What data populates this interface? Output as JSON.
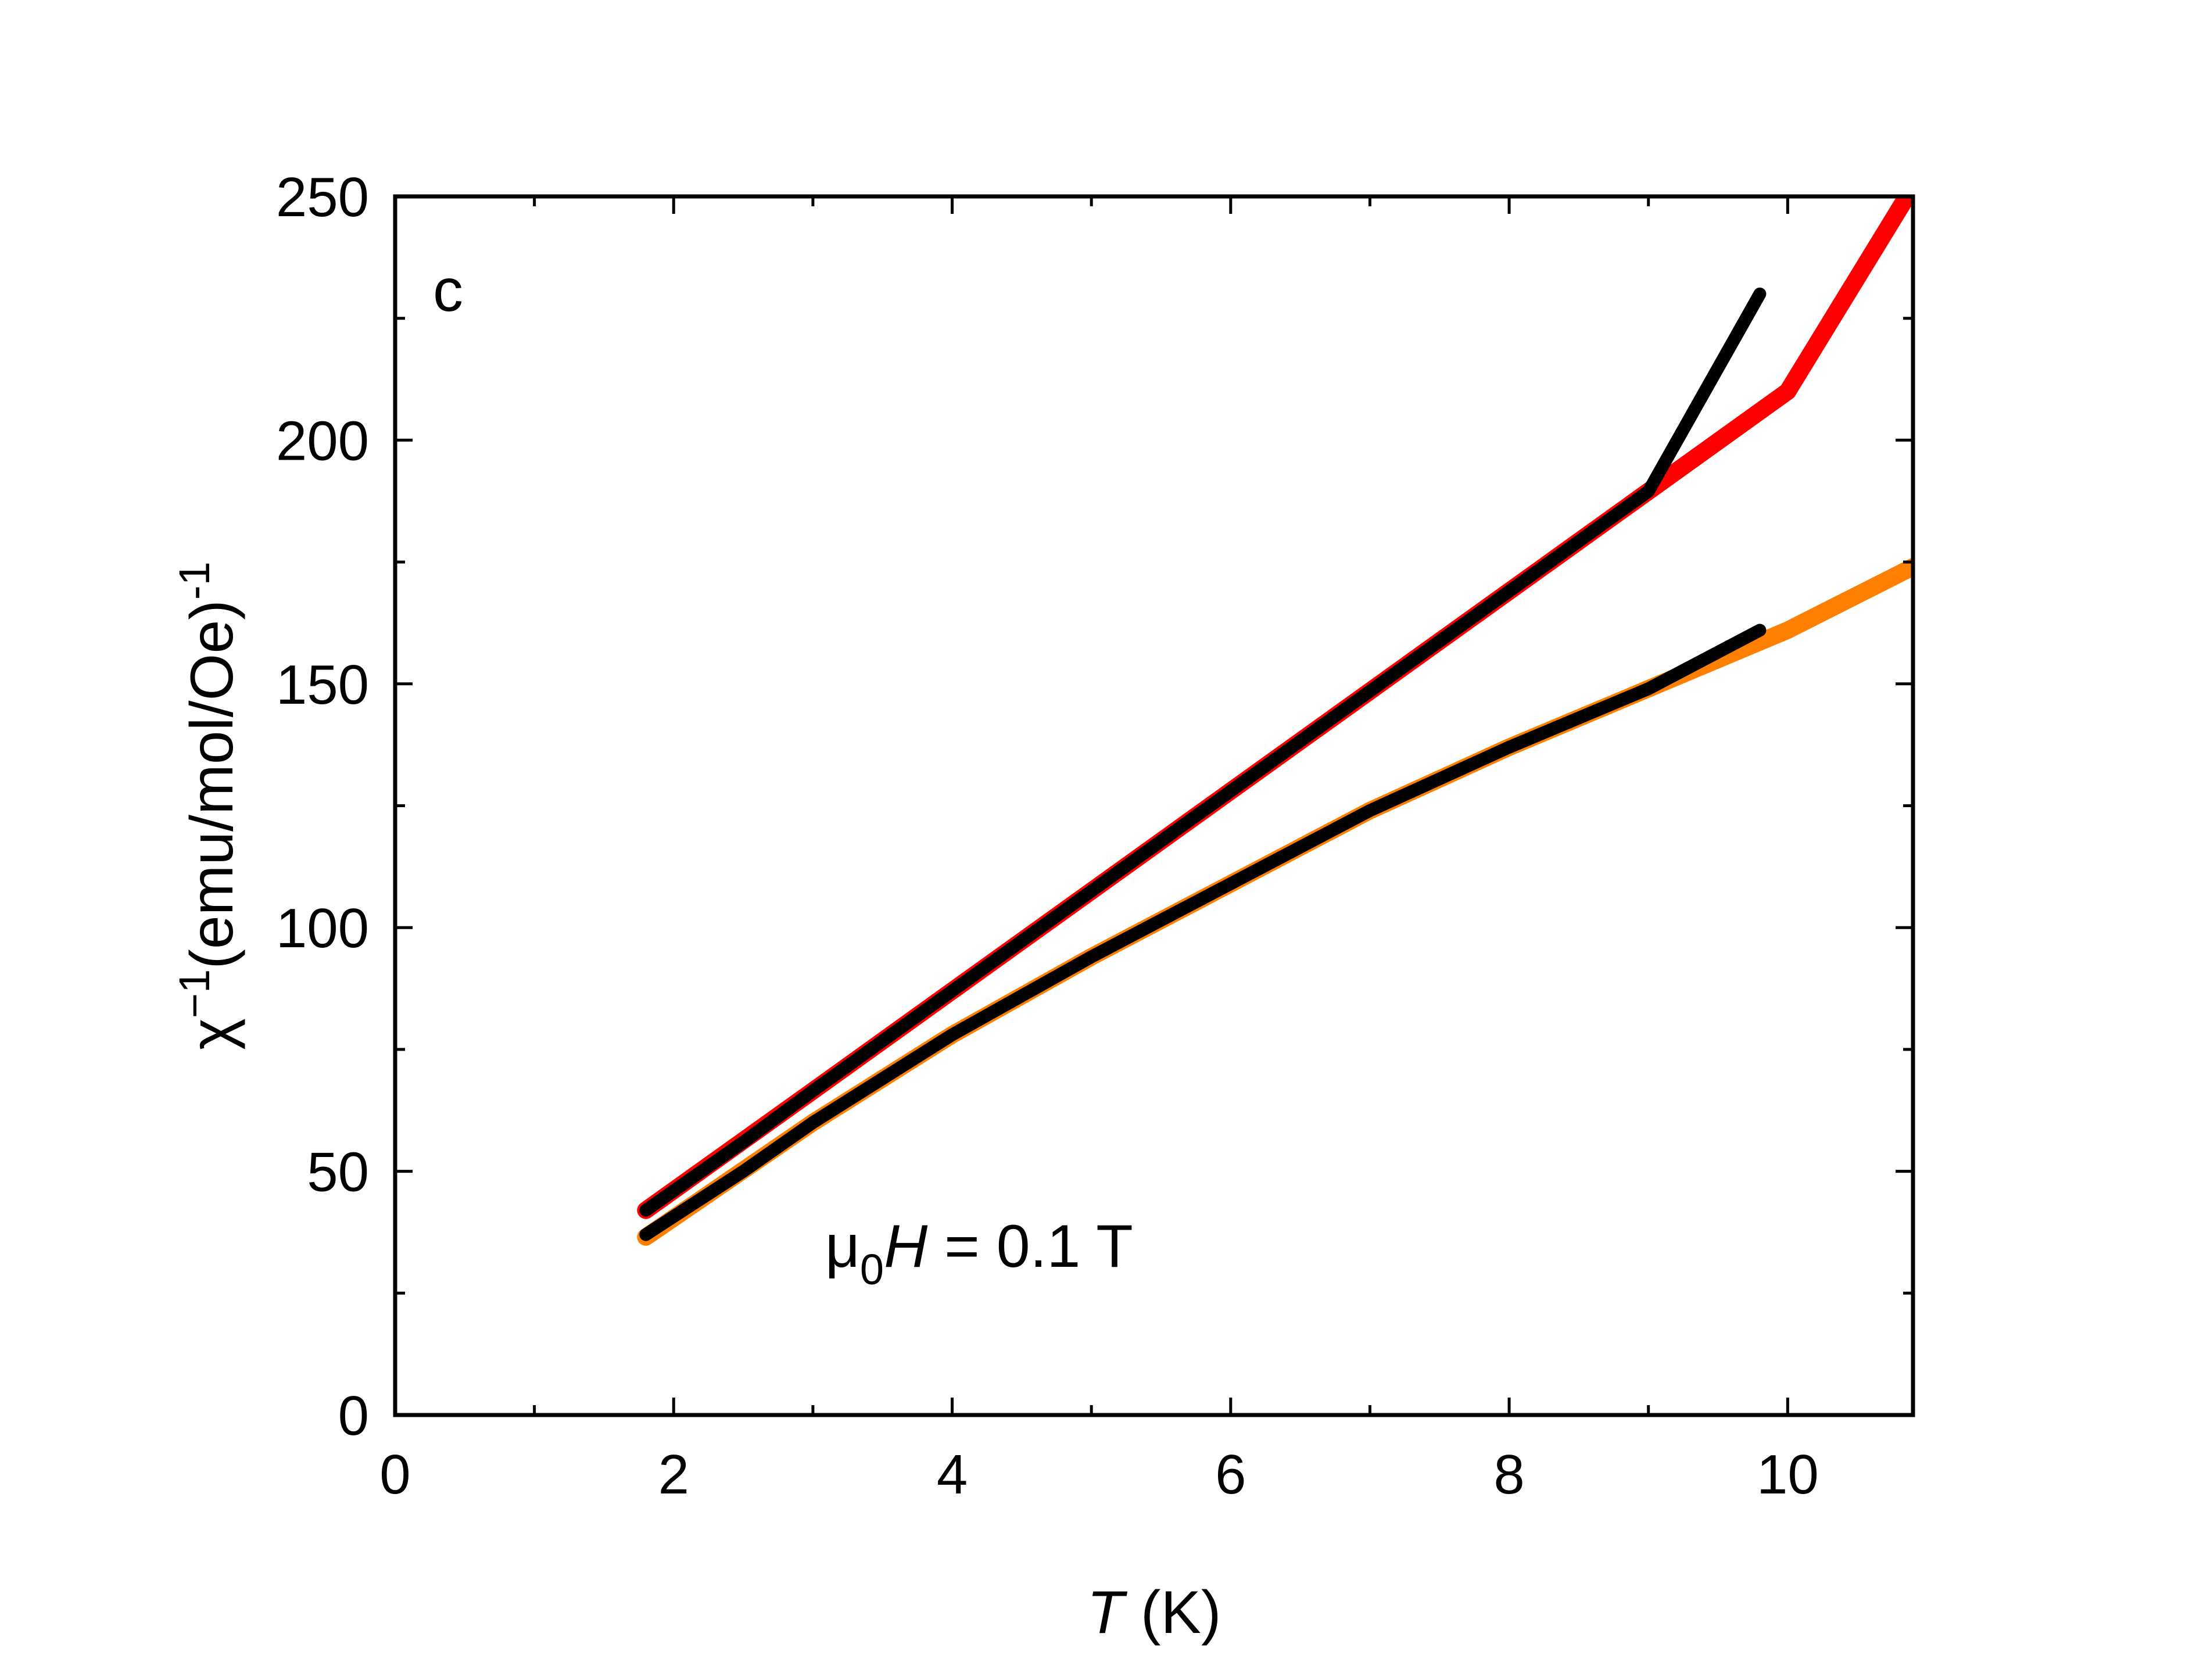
{
  "chart_data": {
    "type": "line",
    "panel_label": "c",
    "annotation": {
      "prefix": "μ",
      "subscript": "0",
      "variable": "H",
      "rest": " = 0.1 T"
    },
    "xlabel": {
      "variable": "T",
      "unit": " (K)"
    },
    "ylabel": {
      "symbol": "χ",
      "sup1": "−1",
      "text": "(emu/mol/Oe)",
      "sup2": "-1"
    },
    "xlim": [
      0,
      10.9
    ],
    "ylim": [
      0,
      250
    ],
    "xticks": [
      0,
      2,
      4,
      6,
      8,
      10
    ],
    "xtick_labels": [
      "0",
      "2",
      "4",
      "6",
      "8",
      "10"
    ],
    "xminor": [
      1,
      3,
      5,
      7,
      9
    ],
    "yticks": [
      0,
      50,
      100,
      150,
      200,
      250
    ],
    "ytick_labels": [
      "0",
      "50",
      "100",
      "150",
      "200",
      "250"
    ],
    "yminor": [
      25,
      75,
      125,
      175,
      225
    ],
    "grid": false,
    "series": [
      {
        "color": "#ff0000",
        "style": "fit-band",
        "x": [
          1.8,
          3,
          4,
          5,
          6,
          7,
          8,
          9,
          10,
          10.9
        ],
        "y": [
          42,
          66.5,
          87,
          107.5,
          128,
          148.5,
          169,
          189.5,
          210,
          252
        ]
      },
      {
        "color": "#ff8000",
        "style": "fit-band",
        "x": [
          1.8,
          3,
          4,
          5,
          6,
          7,
          8,
          9,
          10,
          10.9
        ],
        "y": [
          36.5,
          60,
          78,
          94,
          109,
          124,
          137,
          149,
          161,
          174
        ]
      },
      {
        "color": "#000000",
        "style": "data",
        "x": [
          1.8,
          2.5,
          3,
          4,
          5,
          6,
          7,
          8,
          9,
          9.8
        ],
        "y": [
          42,
          56,
          66.5,
          87,
          107.5,
          128,
          148.5,
          169,
          189.5,
          230
        ]
      },
      {
        "color": "#000000",
        "style": "data",
        "x": [
          1.8,
          2.5,
          3,
          4,
          5,
          6,
          7,
          8,
          9,
          9.8
        ],
        "y": [
          37,
          50,
          60,
          78,
          94,
          109,
          124,
          137,
          149,
          161
        ]
      }
    ]
  }
}
